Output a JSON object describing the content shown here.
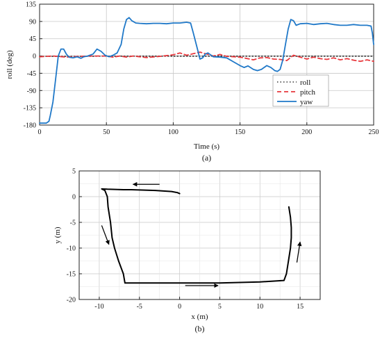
{
  "panel_labels": {
    "a": "(a)",
    "b": "(b)"
  },
  "chart_data": [
    {
      "type": "line",
      "panel": "(a)",
      "xlabel": "Time (s)",
      "ylabel": "roll (deg)",
      "xlim": [
        0,
        250
      ],
      "ylim": [
        -180,
        135
      ],
      "x_ticks": [
        0,
        50,
        100,
        150,
        200,
        250
      ],
      "y_ticks": [
        135,
        90,
        45,
        0,
        -45,
        -90,
        -135,
        -180
      ],
      "grid": true,
      "legend_position": "bottom-right",
      "series": [
        {
          "name": "roll",
          "style": "dotted",
          "color": "#333333",
          "points": [
            [
              0,
              -1
            ],
            [
              25,
              -1
            ],
            [
              50,
              -0.5
            ],
            [
              75,
              -0.5
            ],
            [
              100,
              -0.5
            ],
            [
              125,
              -0.5
            ],
            [
              150,
              -0.5
            ],
            [
              175,
              -0.5
            ],
            [
              200,
              -0.5
            ],
            [
              225,
              -0.5
            ],
            [
              250,
              -0.5
            ]
          ]
        },
        {
          "name": "pitch",
          "style": "dashed",
          "color": "#e8383d",
          "points": [
            [
              0,
              -2
            ],
            [
              10,
              0
            ],
            [
              20,
              -3
            ],
            [
              30,
              -1
            ],
            [
              40,
              0
            ],
            [
              50,
              0
            ],
            [
              55,
              -3
            ],
            [
              60,
              0
            ],
            [
              65,
              -3
            ],
            [
              70,
              0
            ],
            [
              75,
              -2
            ],
            [
              80,
              -4
            ],
            [
              90,
              -1
            ],
            [
              100,
              3
            ],
            [
              105,
              8
            ],
            [
              110,
              2
            ],
            [
              115,
              6
            ],
            [
              120,
              10
            ],
            [
              125,
              5
            ],
            [
              130,
              0
            ],
            [
              135,
              4
            ],
            [
              140,
              -1
            ],
            [
              150,
              -3
            ],
            [
              160,
              -10
            ],
            [
              165,
              -5
            ],
            [
              170,
              -4
            ],
            [
              175,
              -8
            ],
            [
              180,
              -9
            ],
            [
              185,
              -12
            ],
            [
              190,
              2
            ],
            [
              195,
              -3
            ],
            [
              200,
              -8
            ],
            [
              205,
              -3
            ],
            [
              210,
              -7
            ],
            [
              215,
              -9
            ],
            [
              220,
              -5
            ],
            [
              225,
              -10
            ],
            [
              230,
              -7
            ],
            [
              235,
              -11
            ],
            [
              240,
              -14
            ],
            [
              245,
              -10
            ],
            [
              250,
              -14
            ]
          ]
        },
        {
          "name": "yaw",
          "style": "solid",
          "color": "#1f78c8",
          "points": [
            [
              0,
              -175
            ],
            [
              5,
              -175
            ],
            [
              7,
              -170
            ],
            [
              8,
              -155
            ],
            [
              10,
              -120
            ],
            [
              12,
              -60
            ],
            [
              14,
              0
            ],
            [
              16,
              18
            ],
            [
              18,
              18
            ],
            [
              20,
              5
            ],
            [
              22,
              -3
            ],
            [
              25,
              -5
            ],
            [
              28,
              -2
            ],
            [
              31,
              -6
            ],
            [
              33,
              -2
            ],
            [
              36,
              0
            ],
            [
              40,
              5
            ],
            [
              43,
              18
            ],
            [
              46,
              12
            ],
            [
              49,
              2
            ],
            [
              52,
              -2
            ],
            [
              55,
              2
            ],
            [
              58,
              8
            ],
            [
              61,
              30
            ],
            [
              63,
              70
            ],
            [
              65,
              95
            ],
            [
              67,
              100
            ],
            [
              69,
              92
            ],
            [
              72,
              86
            ],
            [
              75,
              85
            ],
            [
              80,
              84
            ],
            [
              85,
              85
            ],
            [
              90,
              85
            ],
            [
              95,
              84
            ],
            [
              100,
              86
            ],
            [
              105,
              86
            ],
            [
              110,
              88
            ],
            [
              113,
              86
            ],
            [
              115,
              60
            ],
            [
              118,
              20
            ],
            [
              120,
              -8
            ],
            [
              122,
              -5
            ],
            [
              124,
              5
            ],
            [
              126,
              8
            ],
            [
              130,
              -2
            ],
            [
              135,
              -3
            ],
            [
              140,
              -5
            ],
            [
              145,
              -15
            ],
            [
              150,
              -25
            ],
            [
              153,
              -30
            ],
            [
              156,
              -26
            ],
            [
              160,
              -35
            ],
            [
              163,
              -38
            ],
            [
              166,
              -35
            ],
            [
              170,
              -25
            ],
            [
              173,
              -30
            ],
            [
              176,
              -38
            ],
            [
              178,
              -40
            ],
            [
              180,
              -35
            ],
            [
              182,
              -10
            ],
            [
              184,
              30
            ],
            [
              186,
              70
            ],
            [
              188,
              95
            ],
            [
              190,
              92
            ],
            [
              192,
              80
            ],
            [
              195,
              84
            ],
            [
              200,
              85
            ],
            [
              205,
              82
            ],
            [
              210,
              84
            ],
            [
              215,
              85
            ],
            [
              220,
              82
            ],
            [
              225,
              80
            ],
            [
              230,
              80
            ],
            [
              235,
              82
            ],
            [
              240,
              80
            ],
            [
              245,
              80
            ],
            [
              248,
              78
            ],
            [
              249,
              60
            ],
            [
              250,
              30
            ]
          ]
        }
      ]
    },
    {
      "type": "line",
      "panel": "(b)",
      "xlabel": "x (m)",
      "ylabel": "y (m)",
      "xlim": [
        -12.5,
        17.5
      ],
      "ylim": [
        -20,
        5
      ],
      "x_ticks": [
        -10,
        -5,
        0,
        5,
        10,
        15
      ],
      "y_ticks": [
        5,
        0,
        -5,
        -10,
        -15,
        -20
      ],
      "grid": true,
      "series": [
        {
          "style": "solid",
          "color": "#000000",
          "points": [
            [
              0,
              0.6
            ],
            [
              -0.3,
              0.8
            ],
            [
              -1,
              1.0
            ],
            [
              -2,
              1.1
            ],
            [
              -3,
              1.2
            ],
            [
              -4,
              1.25
            ],
            [
              -5,
              1.3
            ],
            [
              -6,
              1.35
            ],
            [
              -7,
              1.35
            ],
            [
              -8,
              1.4
            ],
            [
              -9,
              1.45
            ],
            [
              -9.7,
              1.5
            ],
            [
              -9.3,
              1.2
            ],
            [
              -9.0,
              0
            ],
            [
              -8.9,
              -2
            ],
            [
              -8.6,
              -5
            ],
            [
              -8.4,
              -8
            ],
            [
              -8.1,
              -10
            ],
            [
              -7.6,
              -12.5
            ],
            [
              -7.0,
              -15
            ],
            [
              -6.8,
              -16.8
            ],
            [
              -5,
              -16.8
            ],
            [
              0,
              -16.8
            ],
            [
              5,
              -16.8
            ],
            [
              10,
              -16.6
            ],
            [
              13.0,
              -16.3
            ],
            [
              13.3,
              -15
            ],
            [
              13.6,
              -12
            ],
            [
              13.8,
              -10
            ],
            [
              13.9,
              -8
            ],
            [
              13.9,
              -6
            ],
            [
              13.8,
              -4
            ],
            [
              13.6,
              -2
            ]
          ]
        }
      ],
      "arrows": [
        {
          "from": [
            -2.5,
            2.4
          ],
          "to": [
            -5.8,
            2.4
          ]
        },
        {
          "from": [
            -9.7,
            -5.6
          ],
          "to": [
            -8.8,
            -9.3
          ]
        },
        {
          "from": [
            0.7,
            -17.3
          ],
          "to": [
            4.8,
            -17.3
          ]
        },
        {
          "from": [
            14.6,
            -12.8
          ],
          "to": [
            15.0,
            -8.8
          ]
        }
      ]
    }
  ]
}
